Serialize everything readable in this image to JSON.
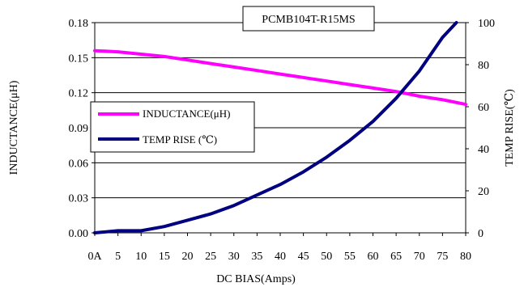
{
  "chart_data": {
    "type": "line",
    "title": "PCMB104T-R15MS",
    "xlabel": "DC BIAS(Amps)",
    "ylabel": "INDUCTANCE(μH)",
    "y2label": "TEMP RISE(℃)",
    "x_tick_labels": [
      "0A",
      "5",
      "10",
      "15",
      "20",
      "25",
      "30",
      "35",
      "40",
      "45",
      "50",
      "55",
      "60",
      "65",
      "70",
      "75",
      "80"
    ],
    "xlim": [
      0,
      80
    ],
    "ylim": [
      0,
      0.18
    ],
    "y_tick_labels": [
      "0.00",
      "0.03",
      "0.06",
      "0.09",
      "0.12",
      "0.15",
      "0.18"
    ],
    "y2lim": [
      0,
      100
    ],
    "y2_tick_labels": [
      "0",
      "20",
      "40",
      "60",
      "80",
      "100"
    ],
    "grid": "horizontal",
    "legend_position": "left-middle",
    "series": [
      {
        "name": "INDUCTANCE(μH)",
        "axis": "left",
        "color": "#ff00ff",
        "x": [
          0,
          5,
          10,
          15,
          20,
          25,
          30,
          35,
          40,
          45,
          50,
          55,
          60,
          65,
          70,
          75,
          80
        ],
        "y": [
          0.156,
          0.155,
          0.153,
          0.151,
          0.148,
          0.145,
          0.142,
          0.139,
          0.136,
          0.133,
          0.13,
          0.127,
          0.124,
          0.121,
          0.117,
          0.114,
          0.11
        ]
      },
      {
        "name": "TEMP RISE (℃)",
        "axis": "right",
        "color": "#000080",
        "x": [
          0,
          5,
          10,
          15,
          20,
          25,
          30,
          35,
          40,
          45,
          50,
          55,
          60,
          65,
          70,
          75,
          78
        ],
        "y": [
          0,
          1,
          1,
          3,
          6,
          9,
          13,
          18,
          23,
          29,
          36,
          44,
          53,
          64,
          77,
          93,
          100
        ]
      }
    ]
  }
}
